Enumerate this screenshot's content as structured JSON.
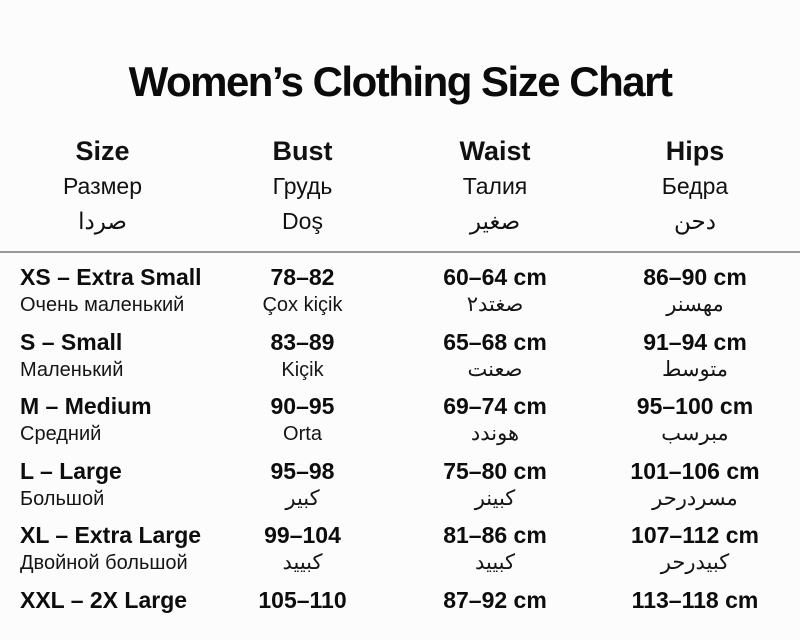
{
  "title": "Women’s Clothing Size Chart",
  "header": {
    "size": {
      "en": "Size",
      "ru": "Размер",
      "ar": "صردا"
    },
    "bust": {
      "en": "Bust",
      "ru": "Грудь",
      "ar": "Doş"
    },
    "waist": {
      "en": "Waist",
      "ru": "Талия",
      "ar": "صغير"
    },
    "hips": {
      "en": "Hips",
      "ru": "Бедра",
      "ar": "دحن"
    }
  },
  "rows": [
    {
      "size": "XS – Extra Small",
      "size_sub": "Очень маленький",
      "bust": "78–82",
      "bust_sub": "Çox kiçik",
      "waist": "60–64 cm",
      "waist_sub": "صغتد٢",
      "hips": "86–90 cm",
      "hips_sub": "مهسنر"
    },
    {
      "size": "S – Small",
      "size_sub": "Маленький",
      "bust": "83–89",
      "bust_sub": "Kiçik",
      "waist": "65–68 cm",
      "waist_sub": "صعنت",
      "hips": "91–94 cm",
      "hips_sub": "متوسط"
    },
    {
      "size": "M – Medium",
      "size_sub": "Средний",
      "bust": "90–95",
      "bust_sub": "Orta",
      "waist": "69–74 cm",
      "waist_sub": "هوندد",
      "hips": "95–100 cm",
      "hips_sub": "مبرسب"
    },
    {
      "size": "L – Large",
      "size_sub": "Большой",
      "bust": "95–98",
      "bust_sub": "كبير",
      "waist": "75–80 cm",
      "waist_sub": "كبينر",
      "hips": "101–106 cm",
      "hips_sub": "مسردرحر"
    },
    {
      "size": "XL – Extra Large",
      "size_sub": "Двойной большой",
      "bust": "99–104",
      "bust_sub": "كبييد",
      "waist": "81–86 cm",
      "waist_sub": "كبييد",
      "hips": "107–112 cm",
      "hips_sub": "كبيدرحر"
    },
    {
      "size": "XXL – 2X Large",
      "bust": "105–110",
      "waist": "87–92 cm",
      "hips": "113–118 cm"
    }
  ]
}
